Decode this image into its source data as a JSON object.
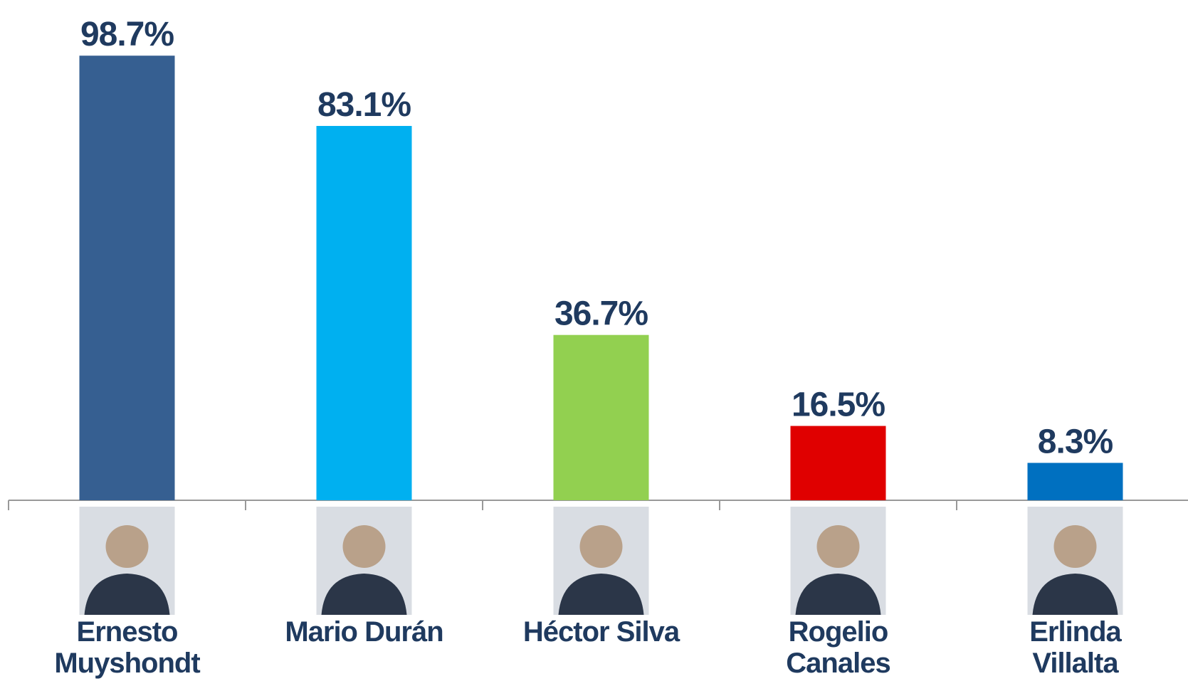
{
  "chart_data": {
    "type": "bar",
    "categories": [
      "Ernesto Muyshondt",
      "Mario Durán",
      "Héctor Silva",
      "Rogelio Canales",
      "Erlinda Villalta"
    ],
    "values": [
      98.7,
      83.1,
      36.7,
      16.5,
      8.3
    ],
    "value_labels": [
      "98.7%",
      "83.1%",
      "36.7%",
      "16.5%",
      "8.3%"
    ],
    "colors": [
      "#365f91",
      "#00b0f0",
      "#92d050",
      "#e00000",
      "#0070c0"
    ],
    "ylim": [
      0,
      100
    ]
  }
}
